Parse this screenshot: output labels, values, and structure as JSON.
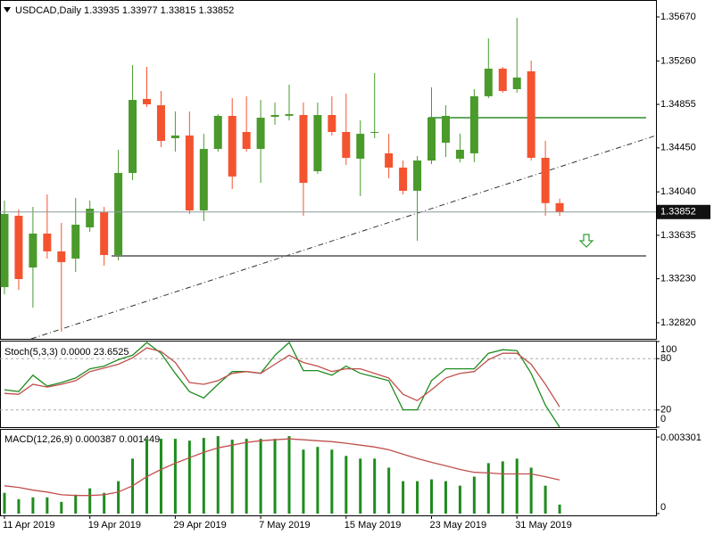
{
  "chart_data": [
    {
      "type": "candlestick",
      "title": "USDCAD,Daily  1.33935 1.33977 1.33815 1.33852",
      "categories": [
        "11 Apr 2019",
        null,
        null,
        null,
        null,
        null,
        "19 Apr 2019",
        null,
        null,
        null,
        null,
        null,
        "29 Apr 2019",
        null,
        null,
        null,
        null,
        null,
        "7 May 2019",
        null,
        null,
        null,
        null,
        null,
        "15 May 2019",
        null,
        null,
        null,
        null,
        null,
        "23 May 2019",
        null,
        null,
        null,
        null,
        null,
        "31 May 2019",
        null,
        null,
        null
      ],
      "open": [
        1.33152,
        1.33817,
        1.33335,
        1.33651,
        1.33485,
        1.33418,
        1.33709,
        1.3385,
        1.33451,
        1.34216,
        1.34906,
        1.34847,
        1.3454,
        1.34565,
        1.33867,
        1.3444,
        1.34748,
        1.34598,
        1.3444,
        1.34739,
        1.34748,
        1.34756,
        1.34232,
        1.34756,
        1.34598,
        1.34349,
        1.3459,
        1.34399,
        1.34266,
        1.3405,
        1.34332,
        1.34498,
        1.34349,
        1.34399,
        1.34931,
        1.35188,
        1.34997,
        1.35163,
        1.34357,
        1.33935
      ],
      "high": [
        1.33958,
        1.33875,
        1.339,
        1.34016,
        1.3375,
        1.33983,
        1.33958,
        1.339,
        1.34432,
        1.35221,
        1.35205,
        1.3498,
        1.34789,
        1.34789,
        1.34581,
        1.34764,
        1.34914,
        1.34931,
        1.34897,
        1.34872,
        1.35039,
        1.34872,
        1.34872,
        1.34931,
        1.34955,
        1.34706,
        1.35147,
        1.34581,
        1.34332,
        1.34374,
        1.35014,
        1.34847,
        1.34581,
        1.34997,
        1.35471,
        1.35205,
        1.35662,
        1.35263,
        1.34515,
        1.33977
      ],
      "low": [
        1.33086,
        1.33127,
        1.32961,
        1.33418,
        1.32737,
        1.33293,
        1.33667,
        1.33352,
        1.33401,
        1.34149,
        1.34831,
        1.34457,
        1.34415,
        1.33834,
        1.33767,
        1.34415,
        1.34066,
        1.34415,
        1.34124,
        1.34665,
        1.34706,
        1.33817,
        1.34208,
        1.34565,
        1.34291,
        1.34,
        1.3454,
        1.34166,
        1.34016,
        1.33584,
        1.34299,
        1.34365,
        1.34316,
        1.34316,
        1.34914,
        1.34964,
        1.34964,
        1.34332,
        1.33817,
        1.33815
      ],
      "close": [
        1.33834,
        1.33227,
        1.33651,
        1.33485,
        1.33385,
        1.33734,
        1.33883,
        1.33451,
        1.34216,
        1.34897,
        1.34856,
        1.34515,
        1.34565,
        1.33867,
        1.3444,
        1.34748,
        1.34183,
        1.3444,
        1.34731,
        1.34756,
        1.34764,
        1.34124,
        1.34756,
        1.34598,
        1.34357,
        1.34581,
        1.34598,
        1.34266,
        1.3405,
        1.34332,
        1.34731,
        1.34748,
        1.34432,
        1.34931,
        1.35188,
        1.3498,
        1.35105,
        1.34357,
        1.33935,
        1.33852
      ],
      "up_color": "#4a9a2c",
      "down_color": "#f4532f",
      "ylim": [
        1.3267,
        1.35828
      ],
      "yticks": [
        {
          "value": 1.3567,
          "label": "1.35670"
        },
        {
          "value": 1.3526,
          "label": "1.35260"
        },
        {
          "value": 1.34855,
          "label": "1.34855"
        },
        {
          "value": 1.3445,
          "label": "1.34450"
        },
        {
          "value": 1.3404,
          "label": "1.34040"
        },
        {
          "value": 1.33635,
          "label": "1.33635"
        },
        {
          "value": 1.3323,
          "label": "1.33230"
        },
        {
          "value": 1.3282,
          "label": "1.32820"
        }
      ],
      "last_price": {
        "value": 1.33852,
        "label": "1.33852"
      },
      "levels": [
        {
          "value": 1.34731,
          "color": "#2e8b2e"
        },
        {
          "value": 1.33443,
          "color": "#555555"
        }
      ]
    },
    {
      "type": "line",
      "title": "Stoch(5,3,3) 0.0000 23.6525",
      "ylim": [
        0,
        100
      ],
      "yticks": [
        100,
        80,
        20,
        0
      ],
      "levels": [
        80,
        20
      ],
      "series": [
        {
          "color": "#1e8c1e",
          "values": [
            43.6,
            41.5,
            60.6,
            47.9,
            52.1,
            57.4,
            68.1,
            71.3,
            78.7,
            84.0,
            98.9,
            86.2,
            62.8,
            41.5,
            34.0,
            50.0,
            64.9,
            64.9,
            62.8,
            84.0,
            98.9,
            66.0,
            66.0,
            60.6,
            71.3,
            62.8,
            58.5,
            54.3,
            20.2,
            20.2,
            54.3,
            68.1,
            68.1,
            68.1,
            86.2,
            90.4,
            89.4,
            62.8,
            25.5,
            0
          ]
        },
        {
          "color": "#c0504d",
          "values": [
            39.4,
            38.3,
            50.0,
            46.8,
            50.0,
            54.3,
            64.9,
            69.1,
            73.4,
            80.9,
            92.6,
            88.3,
            75.5,
            52.1,
            50.0,
            54.3,
            62.8,
            64.9,
            62.8,
            73.4,
            84.0,
            75.5,
            71.3,
            64.9,
            68.1,
            68.1,
            62.8,
            57.4,
            38.3,
            30.9,
            43.6,
            57.4,
            62.8,
            64.9,
            78.7,
            86.2,
            86.2,
            73.4,
            50.0,
            23.6525
          ]
        }
      ]
    },
    {
      "type": "bar",
      "title": "MACD(12,26,9) 0.000387 0.001449",
      "ylim": [
        -7.8e-05,
        0.003612
      ],
      "yticks": [
        {
          "value": 0.003301,
          "label": "0.003301"
        },
        0
      ],
      "series": [
        {
          "type": "bar",
          "color": "#1e8c1e",
          "values": [
            0.000893,
            0.000621,
            0.000699,
            0.000699,
            0.000505,
            0.000815,
            0.001087,
            0.000893,
            0.001398,
            0.002369,
            0.003223,
            0.003223,
            0.003223,
            0.003145,
            0.003262,
            0.003339,
            0.003184,
            0.003223,
            0.003223,
            0.003223,
            0.003339,
            0.002757,
            0.002873,
            0.002757,
            0.002485,
            0.002369,
            0.002369,
            0.00198,
            0.001398,
            0.001398,
            0.001475,
            0.001398,
            0.001204,
            0.001592,
            0.002174,
            0.002252,
            0.002369,
            0.00198,
            0.001204,
            0.000387
          ]
        },
        {
          "type": "line",
          "color": "#c0504d",
          "values": [
            0.0012,
            0.00113,
            0.00101,
            0.00093,
            0.00081,
            0.00078,
            0.00078,
            0.00081,
            0.00093,
            0.0012,
            0.00159,
            0.0019,
            0.00217,
            0.00241,
            0.00264,
            0.00283,
            0.00295,
            0.00307,
            0.00314,
            0.00318,
            0.00322,
            0.00318,
            0.00314,
            0.0031,
            0.00303,
            0.00295,
            0.00287,
            0.00275,
            0.00256,
            0.00237,
            0.00221,
            0.00206,
            0.0019,
            0.00178,
            0.00175,
            0.00171,
            0.00171,
            0.00171,
            0.00159,
            0.001449
          ]
        }
      ]
    }
  ]
}
